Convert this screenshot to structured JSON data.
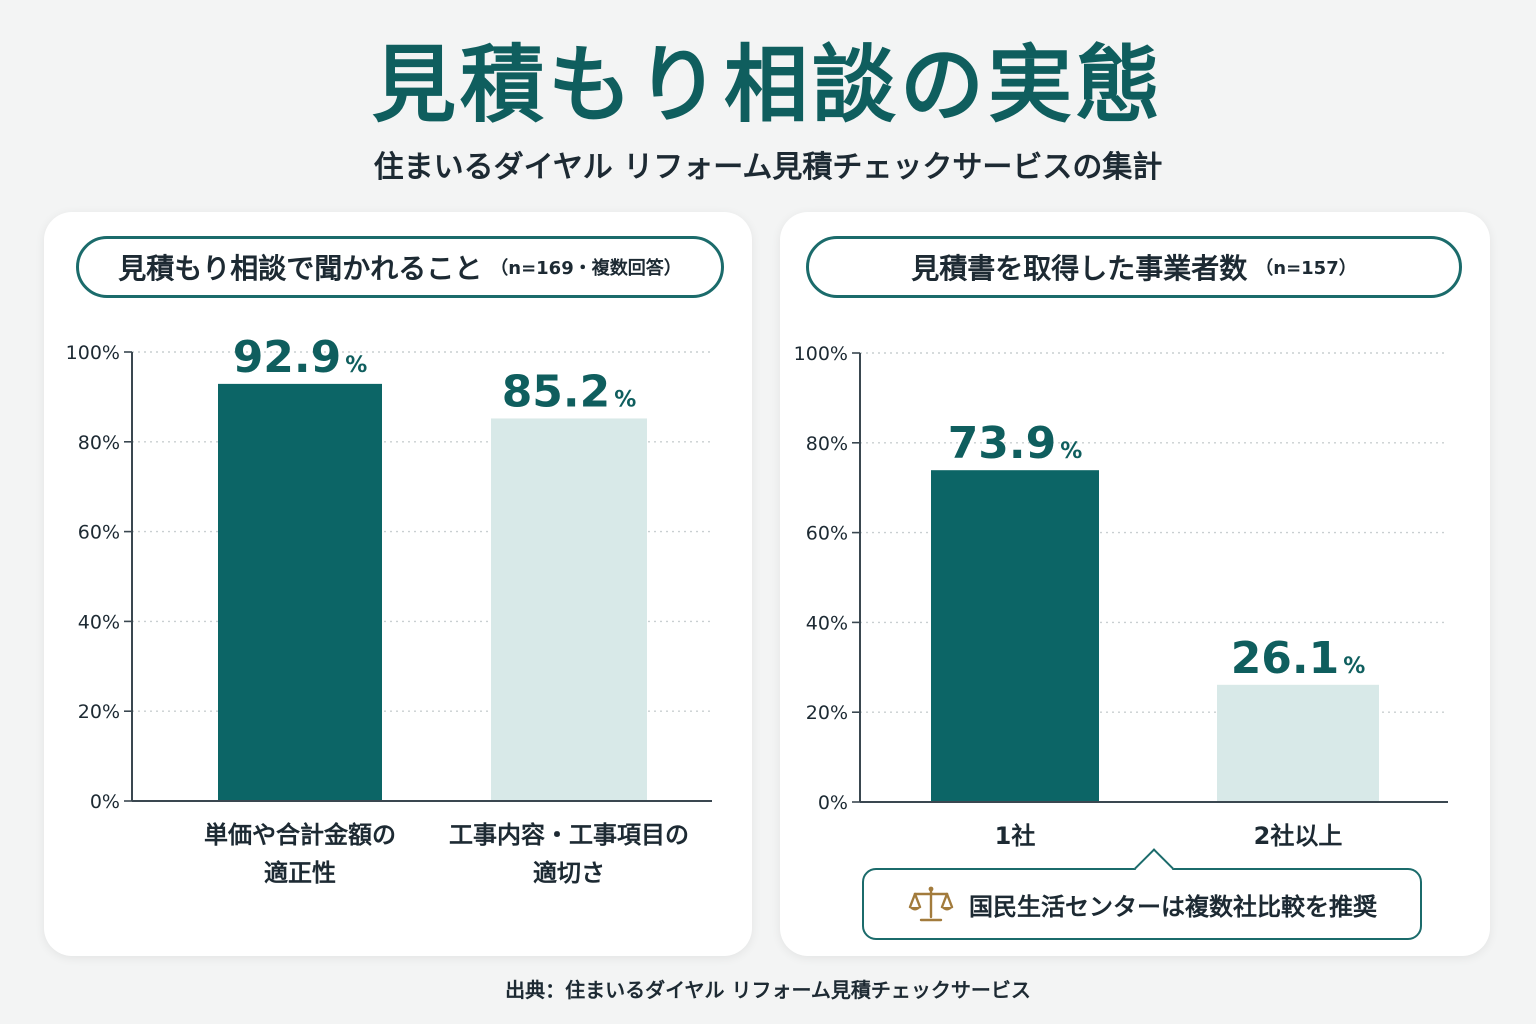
{
  "title": "見積もり相談の実態",
  "subtitle": "住まいるダイヤル リフォーム見積チェックサービスの集計",
  "source": "出典：住まいるダイヤル リフォーム見積チェックサービス",
  "colors": {
    "accent": "#0c6566",
    "light": "#d8e9e8",
    "title": "#0f5e5e"
  },
  "left_panel": {
    "title": "見積もり相談で聞かれること",
    "note": "（n=169・複数回答）"
  },
  "right_panel": {
    "title": "見積書を取得した事業者数",
    "note": "（n=157）",
    "callout_icon": "scales-icon",
    "callout_text": "国民生活センターは複数社比較を推奨"
  },
  "chart_data": [
    {
      "type": "bar",
      "title": "見積もり相談で聞かれること",
      "categories": [
        [
          "単価や合計金額の",
          "適正性"
        ],
        [
          "工事内容・工事項目の",
          "適切さ"
        ]
      ],
      "values": [
        92.9,
        85.2
      ],
      "value_unit": "%",
      "bar_colors": [
        "#0c6566",
        "#d8e9e8"
      ],
      "ylim": [
        0,
        100
      ],
      "yticks": [
        "0%",
        "20%",
        "40%",
        "60%",
        "80%",
        "100%"
      ],
      "grid": true
    },
    {
      "type": "bar",
      "title": "見積書を取得した事業者数",
      "categories": [
        [
          "1社"
        ],
        [
          "2社以上"
        ]
      ],
      "values": [
        73.9,
        26.1
      ],
      "value_unit": "%",
      "bar_colors": [
        "#0c6566",
        "#d8e9e8"
      ],
      "ylim": [
        0,
        100
      ],
      "yticks": [
        "0%",
        "20%",
        "40%",
        "60%",
        "80%",
        "100%"
      ],
      "grid": true
    }
  ]
}
